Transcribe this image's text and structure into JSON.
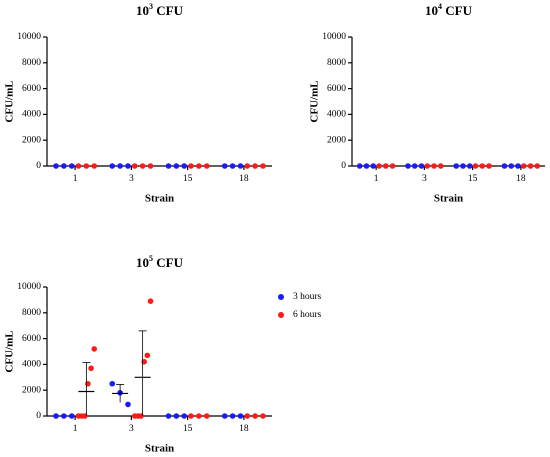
{
  "chart_data": [
    {
      "type": "dot",
      "title_base": "10",
      "title_exponent": "3",
      "title_suffix": " CFU",
      "x_label": "Strain",
      "y_label": "CFU/mL",
      "categories": [
        "1",
        "3",
        "15",
        "18"
      ],
      "ylim": [
        0,
        10000
      ],
      "yticks": [
        0,
        2000,
        4000,
        6000,
        8000,
        10000
      ],
      "series": [
        {
          "color": "#1a1aff",
          "values": [
            [
              0,
              0,
              0
            ],
            [
              0,
              0,
              0
            ],
            [
              0,
              0,
              0
            ],
            [
              0,
              0,
              0
            ]
          ]
        },
        {
          "color": "#ff1a1a",
          "values": [
            [
              0,
              0,
              0
            ],
            [
              0,
              0,
              0
            ],
            [
              0,
              0,
              0
            ],
            [
              0,
              0,
              0
            ]
          ]
        }
      ]
    },
    {
      "type": "dot",
      "title_base": "10",
      "title_exponent": "4",
      "title_suffix": " CFU",
      "x_label": "Strain",
      "y_label": "CFU/mL",
      "categories": [
        "1",
        "3",
        "15",
        "18"
      ],
      "ylim": [
        0,
        10000
      ],
      "yticks": [
        0,
        2000,
        4000,
        6000,
        8000,
        10000
      ],
      "series": [
        {
          "color": "#1a1aff",
          "values": [
            [
              0,
              0,
              0
            ],
            [
              0,
              0,
              0
            ],
            [
              0,
              0,
              0
            ],
            [
              0,
              0,
              0
            ]
          ]
        },
        {
          "color": "#ff1a1a",
          "values": [
            [
              0,
              0,
              0
            ],
            [
              0,
              0,
              0
            ],
            [
              0,
              0,
              0
            ],
            [
              0,
              0,
              0
            ]
          ]
        }
      ]
    },
    {
      "type": "dot",
      "title_base": "10",
      "title_exponent": "5",
      "title_suffix": " CFU",
      "x_label": "Strain",
      "y_label": "CFU/mL",
      "categories": [
        "1",
        "3",
        "15",
        "18"
      ],
      "ylim": [
        0,
        10000
      ],
      "yticks": [
        0,
        2000,
        4000,
        6000,
        8000,
        10000
      ],
      "series": [
        {
          "name": "3 hours",
          "color": "#1a1aff",
          "values": [
            [
              0,
              0,
              0
            ],
            [
              2500,
              1800,
              900
            ],
            [
              0,
              0,
              0
            ],
            [
              0,
              0,
              0
            ]
          ],
          "mean": [
            null,
            1750,
            null,
            null
          ],
          "sd": [
            null,
            700,
            null,
            null
          ]
        },
        {
          "name": "6 hours",
          "color": "#ff1a1a",
          "values": [
            [
              0,
              0,
              0,
              2500,
              3700,
              5200
            ],
            [
              0,
              0,
              0,
              4200,
              4700,
              8900
            ],
            [
              0,
              0,
              0
            ],
            [
              0,
              0,
              0
            ]
          ],
          "mean": [
            1900,
            3000,
            null,
            null
          ],
          "sd": [
            2250,
            3600,
            null,
            null
          ]
        }
      ]
    }
  ]
}
